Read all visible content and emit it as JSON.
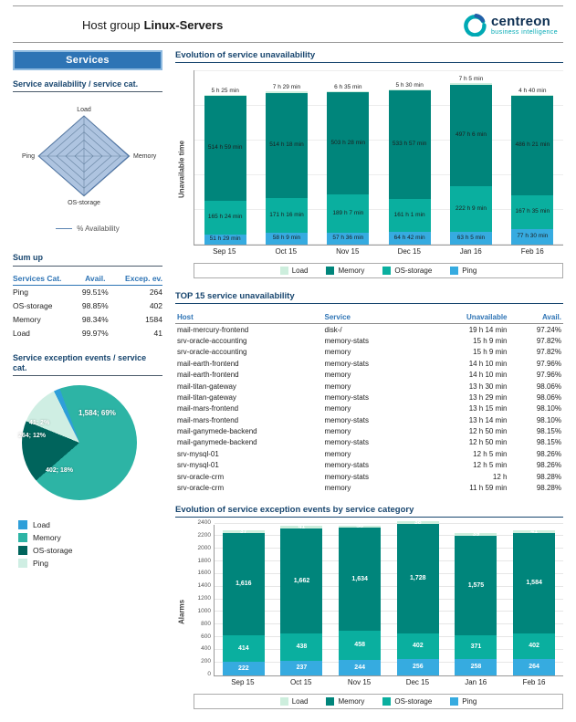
{
  "header": {
    "title_prefix": "Host group",
    "title_host": "Linux-Servers",
    "brand": "centreon",
    "brand_tagline": "business intelligence"
  },
  "colors": {
    "accent_blue": "#2e74b5",
    "navy": "#17456e",
    "load": "#cdeedd",
    "memory": "#00857b",
    "os_storage": "#0aaf9f",
    "ping": "#36abe0",
    "pie_memory": "#2db4a5",
    "pie_os_storage": "#00645c",
    "pie_ping": "#cfeee3",
    "pie_load": "#2e9fd9",
    "radar_fill": "#aec4e0",
    "radar_line": "#3f6aa6",
    "radar_grid": "#64819f"
  },
  "sidebar": {
    "section_box": "Services",
    "availability_title": "Service availability / service cat.",
    "availability_legend": "% Availability",
    "sumup_title": "Sum up",
    "sumup_columns": [
      "Services Cat.",
      "Avail.",
      "Excep. ev."
    ],
    "sumup_rows": [
      [
        "Ping",
        "99.51%",
        "264"
      ],
      [
        "OS-storage",
        "98.85%",
        "402"
      ],
      [
        "Memory",
        "98.34%",
        "1584"
      ],
      [
        "Load",
        "99.97%",
        "41"
      ]
    ],
    "exception_title": "Service exception events / service cat."
  },
  "sections": {
    "unavailability_title": "Evolution of service unavailability",
    "top15_title": "TOP 15 service unavailability",
    "exception_evolution_title": "Evolution of service exception events by service category"
  },
  "top15": {
    "columns": [
      "Host",
      "Service",
      "Unavailable",
      "Avail."
    ],
    "rows": [
      [
        "mail-mercury-frontend",
        "disk-/",
        "19 h 14 min",
        "97.24%"
      ],
      [
        "srv-oracle-accounting",
        "memory-stats",
        "15 h 9 min",
        "97.82%"
      ],
      [
        "srv-oracle-accounting",
        "memory",
        "15 h 9 min",
        "97.82%"
      ],
      [
        "mail-earth-frontend",
        "memory-stats",
        "14 h 10 min",
        "97.96%"
      ],
      [
        "mail-earth-frontend",
        "memory",
        "14 h 10 min",
        "97.96%"
      ],
      [
        "mail-titan-gateway",
        "memory",
        "13 h 30 min",
        "98.06%"
      ],
      [
        "mail-titan-gateway",
        "memory-stats",
        "13 h 29 min",
        "98.06%"
      ],
      [
        "mail-mars-frontend",
        "memory",
        "13 h 15 min",
        "98.10%"
      ],
      [
        "mail-mars-frontend",
        "memory-stats",
        "13 h 14 min",
        "98.10%"
      ],
      [
        "mail-ganymede-backend",
        "memory",
        "12 h 50 min",
        "98.15%"
      ],
      [
        "mail-ganymede-backend",
        "memory-stats",
        "12 h 50 min",
        "98.15%"
      ],
      [
        "srv-mysql-01",
        "memory",
        "12 h 5 min",
        "98.26%"
      ],
      [
        "srv-mysql-01",
        "memory-stats",
        "12 h 5 min",
        "98.26%"
      ],
      [
        "srv-oracle-crm",
        "memory-stats",
        "12 h",
        "98.28%"
      ],
      [
        "srv-oracle-crm",
        "memory",
        "11 h 59 min",
        "98.28%"
      ]
    ]
  },
  "chart_data": [
    {
      "type": "radar",
      "title": "Service availability / service cat.",
      "axes": [
        "Load",
        "Memory",
        "OS-storage",
        "Ping"
      ],
      "series": [
        {
          "name": "% Availability",
          "values": [
            99.97,
            98.34,
            98.85,
            99.51
          ]
        }
      ],
      "range": [
        0,
        100
      ]
    },
    {
      "type": "bar",
      "stacked": true,
      "title": "Evolution of service unavailability",
      "ylabel": "Unavailable time",
      "ymax_hours": 860,
      "categories": [
        "Sep 15",
        "Oct 15",
        "Nov 15",
        "Dec 15",
        "Jan 16",
        "Feb 16"
      ],
      "series": [
        {
          "name": "Ping",
          "color_key": "ping",
          "values": [
            51.48,
            58.15,
            57.6,
            64.7,
            63.08,
            77.5
          ],
          "labels": [
            "51 h 29 min",
            "58 h 9 min",
            "57 h 36 min",
            "64 h 42 min",
            "63 h 5 min",
            "77 h 30 min"
          ]
        },
        {
          "name": "OS-storage",
          "color_key": "os_storage",
          "values": [
            165.4,
            171.27,
            189.12,
            161.02,
            222.15,
            167.58
          ],
          "labels": [
            "165 h 24 min",
            "171 h 16 min",
            "189 h 7 min",
            "161 h 1 min",
            "222 h 9 min",
            "167 h 35 min"
          ]
        },
        {
          "name": "Memory",
          "color_key": "memory",
          "values": [
            514.98,
            514.3,
            503.47,
            533.95,
            497.1,
            486.35
          ],
          "labels": [
            "514 h 59 min",
            "514 h 18 min",
            "503 h 28 min",
            "533 h 57 min",
            "497 h 6 min",
            "486 h 21 min"
          ]
        },
        {
          "name": "Load",
          "color_key": "load",
          "label_position": "above",
          "values": [
            5.42,
            7.48,
            6.58,
            5.5,
            7.08,
            4.67
          ],
          "labels": [
            "5 h 25 min",
            "7 h 29 min",
            "6 h 35 min",
            "5 h 30 min",
            "7 h 5 min",
            "4 h 40 min"
          ]
        }
      ],
      "legend": [
        "Load",
        "Memory",
        "OS-storage",
        "Ping"
      ]
    },
    {
      "type": "pie",
      "title": "Service exception events / service cat.",
      "slices": [
        {
          "name": "Memory",
          "value": 1584,
          "label": "1,584; 69%",
          "color_key": "pie_memory"
        },
        {
          "name": "OS-storage",
          "value": 402,
          "label": "402; 18%",
          "color_key": "pie_os_storage"
        },
        {
          "name": "Ping",
          "value": 264,
          "label": "264; 12%",
          "color_key": "pie_ping"
        },
        {
          "name": "Load",
          "value": 41,
          "label": "41; 2%",
          "color_key": "pie_load"
        }
      ],
      "legend": [
        "Load",
        "Memory",
        "OS-storage",
        "Ping"
      ]
    },
    {
      "type": "bar",
      "stacked": true,
      "title": "Evolution of service exception events by service category",
      "ylabel": "Alarms",
      "ylim": [
        0,
        2400
      ],
      "ytick_step": 200,
      "categories": [
        "Sep 15",
        "Oct 15",
        "Nov 15",
        "Dec 15",
        "Jan 16",
        "Feb 16"
      ],
      "series": [
        {
          "name": "Ping",
          "color_key": "ping",
          "values": [
            222,
            237,
            244,
            256,
            258,
            264
          ],
          "labels": [
            "222",
            "237",
            "244",
            "256",
            "258",
            "264"
          ]
        },
        {
          "name": "OS-storage",
          "color_key": "os_storage",
          "values": [
            414,
            438,
            458,
            402,
            371,
            402
          ],
          "labels": [
            "414",
            "438",
            "458",
            "402",
            "371",
            "402"
          ]
        },
        {
          "name": "Memory",
          "color_key": "memory",
          "values": [
            1616,
            1662,
            1634,
            1728,
            1575,
            1584
          ],
          "labels": [
            "1,616",
            "1,662",
            "1,634",
            "1,728",
            "1,575",
            "1,584"
          ]
        },
        {
          "name": "Load",
          "color_key": "load",
          "label_hidden": true,
          "values": [
            37,
            41,
            36,
            38,
            39,
            41
          ],
          "labels": [
            "37",
            "41",
            "36",
            "38",
            "39",
            "41"
          ]
        }
      ],
      "legend": [
        "Load",
        "Memory",
        "OS-storage",
        "Ping"
      ]
    }
  ]
}
